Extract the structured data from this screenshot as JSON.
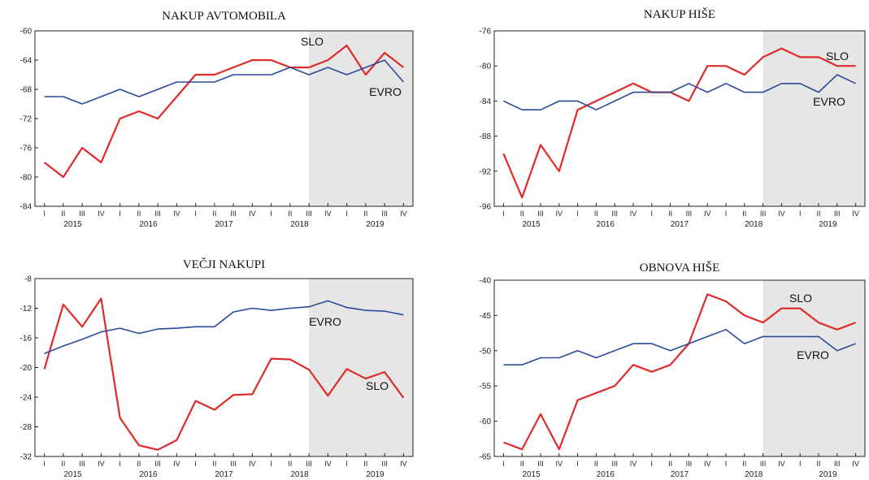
{
  "colors": {
    "slo": "#e02a2a",
    "evro": "#2c4a9a",
    "shade": "#e6e6e6",
    "axis": "#222222"
  },
  "chart_data": [
    {
      "type": "line",
      "title": "NAKUP AVTOMOBILA",
      "x_quarters": [
        "I",
        "II",
        "III",
        "IV",
        "I",
        "II",
        "III",
        "IV",
        "I",
        "II",
        "III",
        "IV",
        "I",
        "II",
        "III",
        "IV",
        "I",
        "II",
        "III",
        "IV"
      ],
      "x_years": [
        "2015",
        "2016",
        "2017",
        "2018",
        "2019"
      ],
      "ylim": [
        -84,
        -60
      ],
      "yticks": [
        -84,
        -80,
        -76,
        -72,
        -68,
        -64,
        -60
      ],
      "shaded_from_index": 14,
      "series": [
        {
          "name": "SLO",
          "values": [
            -78,
            -80,
            -76,
            -78,
            -72,
            -71,
            -72,
            -69,
            -66,
            -66,
            -65,
            -64,
            -64,
            -65,
            -65,
            -64,
            -62,
            -66,
            -63,
            -65
          ]
        },
        {
          "name": "EVRO",
          "values": [
            -69,
            -69,
            -70,
            -69,
            -68,
            -69,
            -68,
            -67,
            -67,
            -67,
            -66,
            -66,
            -66,
            -65,
            -66,
            -65,
            -66,
            -65,
            -64,
            -67
          ]
        }
      ]
    },
    {
      "type": "line",
      "title": "NAKUP HIŠE",
      "x_quarters": [
        "I",
        "II",
        "III",
        "IV",
        "I",
        "II",
        "III",
        "IV",
        "I",
        "II",
        "III",
        "IV",
        "I",
        "II",
        "III",
        "IV",
        "I",
        "II",
        "III",
        "IV"
      ],
      "x_years": [
        "2015",
        "2016",
        "2017",
        "2018",
        "2019"
      ],
      "ylim": [
        -96,
        -76
      ],
      "yticks": [
        -96,
        -92,
        -88,
        -84,
        -80,
        -76
      ],
      "shaded_from_index": 14,
      "series": [
        {
          "name": "SLO",
          "values": [
            -90,
            -95,
            -89,
            -92,
            -85,
            -84,
            -83,
            -82,
            -83,
            -83,
            -84,
            -80,
            -80,
            -81,
            -79,
            -78,
            -79,
            -79,
            -80,
            -80
          ]
        },
        {
          "name": "EVRO",
          "values": [
            -84,
            -85,
            -85,
            -84,
            -84,
            -85,
            -84,
            -83,
            -83,
            -83,
            -82,
            -83,
            -82,
            -83,
            -83,
            -82,
            -82,
            -83,
            -81,
            -82
          ]
        }
      ]
    },
    {
      "type": "line",
      "title": "VEČJI NAKUPI",
      "x_quarters": [
        "I",
        "II",
        "III",
        "IV",
        "I",
        "II",
        "III",
        "IV",
        "I",
        "II",
        "III",
        "IV",
        "I",
        "II",
        "III",
        "IV",
        "I",
        "II",
        "III",
        "IV"
      ],
      "x_years": [
        "2015",
        "2016",
        "2017",
        "2018",
        "2019"
      ],
      "ylim": [
        -32,
        -8
      ],
      "yticks": [
        -32,
        -28,
        -24,
        -20,
        -16,
        -12,
        -8
      ],
      "shaded_from_index": 14,
      "series": [
        {
          "name": "SLO",
          "values": [
            -20.2,
            -11.5,
            -14.5,
            -10.7,
            -26.8,
            -30.5,
            -31.1,
            -29.8,
            -24.5,
            -25.7,
            -23.7,
            -23.6,
            -18.8,
            -18.9,
            -20.3,
            -23.8,
            -20.2,
            -21.5,
            -20.6,
            -24.1
          ]
        },
        {
          "name": "EVRO",
          "values": [
            -18.1,
            -17.1,
            -16.2,
            -15.2,
            -14.7,
            -15.4,
            -14.8,
            -14.7,
            -14.5,
            -14.5,
            -12.5,
            -12.0,
            -12.3,
            -12.0,
            -11.8,
            -11.0,
            -11.9,
            -12.3,
            -12.4,
            -12.9
          ]
        }
      ]
    },
    {
      "type": "line",
      "title": "OBNOVA HIŠE",
      "x_quarters": [
        "I",
        "II",
        "III",
        "IV",
        "I",
        "II",
        "III",
        "IV",
        "I",
        "II",
        "III",
        "IV",
        "I",
        "II",
        "III",
        "IV",
        "I",
        "II",
        "III",
        "IV"
      ],
      "x_years": [
        "2015",
        "2016",
        "2017",
        "2018",
        "2019"
      ],
      "ylim": [
        -65,
        -40
      ],
      "yticks": [
        -65,
        -60,
        -55,
        -50,
        -45,
        -40
      ],
      "shaded_from_index": 14,
      "series": [
        {
          "name": "SLO",
          "values": [
            -63,
            -64,
            -59,
            -64,
            -57,
            -56,
            -55,
            -52,
            -53,
            -52,
            -49,
            -42,
            -43,
            -45,
            -46,
            -44,
            -44,
            -46,
            -47,
            -46
          ]
        },
        {
          "name": "EVRO",
          "values": [
            -52,
            -52,
            -51,
            -51,
            -50,
            -51,
            -50,
            -49,
            -49,
            -50,
            -49,
            -48,
            -47,
            -49,
            -48,
            -48,
            -48,
            -48,
            -50,
            -49
          ]
        }
      ]
    }
  ],
  "series_labels": [
    {
      "slo": "SLO",
      "evro": "EVRO"
    },
    {
      "slo": "SLO",
      "evro": "EVRO"
    },
    {
      "slo": "SLO",
      "evro": "EVRO"
    },
    {
      "slo": "SLO",
      "evro": "EVRO"
    }
  ]
}
